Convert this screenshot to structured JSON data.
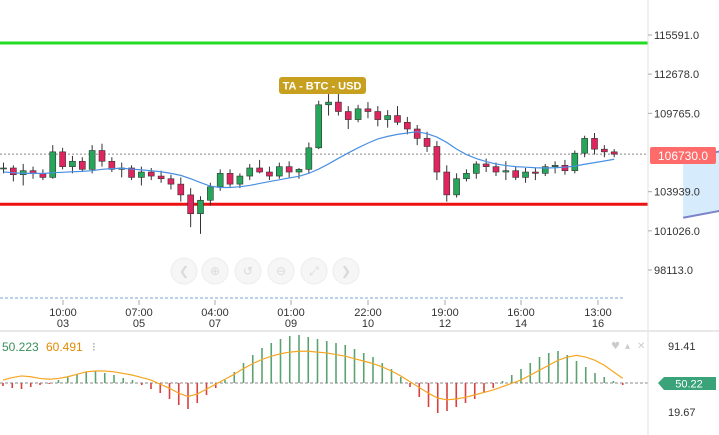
{
  "chart_data": [
    {
      "type": "candlestick",
      "title": "TA - BTC - USD",
      "symbol": "BTC - USD",
      "x_ticks": [
        {
          "time": "10:00",
          "date": "03"
        },
        {
          "time": "07:00",
          "date": "05"
        },
        {
          "time": "04:00",
          "date": "07"
        },
        {
          "time": "01:00",
          "date": "09"
        },
        {
          "time": "22:00",
          "date": "10"
        },
        {
          "time": "19:00",
          "date": "12"
        },
        {
          "time": "16:00",
          "date": "14"
        },
        {
          "time": "13:00",
          "date": "16"
        }
      ],
      "y_ticks": [
        "115591.0",
        "112678.0",
        "109765.0",
        "103939.0",
        "101026.0",
        "98113.0"
      ],
      "ylim": [
        95900,
        118300
      ],
      "last_price_label": "106730.0",
      "last_price": 106730,
      "resistance_level": 115000,
      "support_level": 103000,
      "channel": {
        "lower": [
          {
            "bar": 69,
            "price": 102000
          },
          {
            "bar": 101,
            "price": 106400
          }
        ],
        "upper": [
          {
            "bar": 69,
            "price": 106400
          },
          {
            "bar": 101,
            "price": 111000
          }
        ]
      },
      "candles": [
        [
          105700,
          106100,
          105300,
          105700
        ],
        [
          105700,
          105900,
          104700,
          105200
        ],
        [
          105200,
          106000,
          104400,
          105500
        ],
        [
          105500,
          105800,
          104900,
          105300
        ],
        [
          105300,
          105600,
          104800,
          105000
        ],
        [
          105000,
          107400,
          104900,
          106900
        ],
        [
          106900,
          107200,
          105600,
          105800
        ],
        [
          105800,
          106600,
          105300,
          106200
        ],
        [
          106200,
          106500,
          105400,
          105600
        ],
        [
          105600,
          107400,
          105300,
          107000
        ],
        [
          107000,
          107500,
          105800,
          106200
        ],
        [
          106200,
          106500,
          105400,
          105600
        ],
        [
          105600,
          106100,
          105000,
          105700
        ],
        [
          105700,
          105900,
          104800,
          105000
        ],
        [
          105000,
          105800,
          104400,
          105400
        ],
        [
          105400,
          105700,
          104800,
          105100
        ],
        [
          105100,
          105500,
          104600,
          104900
        ],
        [
          104900,
          105200,
          104100,
          104500
        ],
        [
          104500,
          105000,
          103200,
          103700
        ],
        [
          103700,
          104200,
          101300,
          102300
        ],
        [
          102300,
          103600,
          100800,
          103300
        ],
        [
          103300,
          104600,
          102900,
          104300
        ],
        [
          104300,
          105600,
          104000,
          105300
        ],
        [
          105300,
          105600,
          104300,
          104500
        ],
        [
          104500,
          105300,
          104200,
          105100
        ],
        [
          105100,
          106000,
          104800,
          105700
        ],
        [
          105700,
          106300,
          105300,
          105400
        ],
        [
          105400,
          105800,
          104800,
          105100
        ],
        [
          105100,
          106100,
          104900,
          105800
        ],
        [
          105800,
          106200,
          105000,
          105400
        ],
        [
          105400,
          105700,
          104900,
          105600
        ],
        [
          105600,
          107600,
          105300,
          107200
        ],
        [
          107200,
          110700,
          107100,
          110400
        ],
        [
          110400,
          111200,
          109600,
          110600
        ],
        [
          110600,
          111200,
          109600,
          109900
        ],
        [
          109900,
          110300,
          108600,
          109300
        ],
        [
          109300,
          110400,
          109100,
          110100
        ],
        [
          110100,
          110600,
          109400,
          109900
        ],
        [
          109900,
          110300,
          108800,
          109300
        ],
        [
          109300,
          110000,
          108700,
          109600
        ],
        [
          109600,
          110300,
          108900,
          109100
        ],
        [
          109100,
          109500,
          108200,
          108600
        ],
        [
          108600,
          108900,
          107400,
          107900
        ],
        [
          107900,
          108400,
          106900,
          107300
        ],
        [
          107300,
          107700,
          104800,
          105400
        ],
        [
          105400,
          105900,
          103200,
          103700
        ],
        [
          103700,
          105300,
          103500,
          104900
        ],
        [
          104900,
          105600,
          104700,
          105300
        ],
        [
          105300,
          106200,
          104900,
          106000
        ],
        [
          106000,
          106400,
          105400,
          105800
        ],
        [
          105800,
          106100,
          105100,
          105400
        ],
        [
          105400,
          106200,
          104800,
          105500
        ],
        [
          105500,
          105800,
          104800,
          105000
        ],
        [
          105000,
          105700,
          104600,
          105400
        ],
        [
          105400,
          105700,
          104800,
          105300
        ],
        [
          105300,
          106000,
          105100,
          105800
        ],
        [
          105800,
          106200,
          105300,
          105900
        ],
        [
          105900,
          106300,
          105200,
          105500
        ],
        [
          105500,
          107000,
          105300,
          106800
        ],
        [
          106800,
          108100,
          106500,
          107900
        ],
        [
          107900,
          108300,
          106700,
          107100
        ],
        [
          107100,
          107400,
          106500,
          106900
        ],
        [
          106900,
          107100,
          106500,
          106730
        ]
      ],
      "ma_line": [
        105400,
        105350,
        105300,
        105310,
        105290,
        105350,
        105380,
        105420,
        105450,
        105500,
        105600,
        105650,
        105680,
        105620,
        105560,
        105500,
        105420,
        105300,
        105150,
        104900,
        104620,
        104350,
        104250,
        104250,
        104310,
        104400,
        104550,
        104690,
        104820,
        104960,
        105080,
        105300,
        105620,
        106000,
        106420,
        106820,
        107200,
        107550,
        107860,
        108050,
        108200,
        108300,
        108400,
        108250,
        108000,
        107600,
        107100,
        106700,
        106400,
        106180,
        106000,
        105880,
        105800,
        105760,
        105720,
        105700,
        105720,
        105760,
        105840,
        105980,
        106100,
        106220,
        106350
      ]
    },
    {
      "type": "oscillator",
      "values_label": [
        "50.223",
        "60.491"
      ],
      "y_ticks": [
        "91.41",
        "19.67"
      ],
      "current_label": "50.22",
      "ylim": [
        10,
        100
      ],
      "histogram": [
        -3,
        -5,
        -6,
        -4,
        -2,
        -1,
        3,
        6,
        9,
        11,
        12,
        10,
        8,
        5,
        3,
        -2,
        -6,
        -10,
        -16,
        -22,
        -26,
        -20,
        -12,
        -5,
        3,
        11,
        20,
        28,
        35,
        40,
        44,
        47,
        48,
        46,
        44,
        42,
        40,
        38,
        34,
        30,
        26,
        20,
        14,
        6,
        -4,
        -14,
        -24,
        -30,
        -28,
        -24,
        -20,
        -16,
        -10,
        -5,
        2,
        8,
        14,
        20,
        26,
        30,
        32,
        28,
        22,
        16,
        10,
        6,
        2,
        -2
      ],
      "signal_line": [
        50,
        53,
        55,
        54,
        52,
        51,
        52,
        54,
        57,
        60,
        61,
        61,
        60,
        58,
        56,
        53,
        50,
        45,
        40,
        34,
        30,
        33,
        39,
        45,
        51,
        57,
        64,
        70,
        75,
        79,
        82,
        84,
        85,
        85,
        84,
        83,
        81,
        79,
        76,
        73,
        70,
        66,
        61,
        55,
        48,
        41,
        34,
        28,
        26,
        27,
        29,
        32,
        35,
        38,
        42,
        46,
        50,
        56,
        62,
        68,
        74,
        78,
        80,
        78,
        74,
        68,
        60,
        52
      ]
    }
  ]
}
